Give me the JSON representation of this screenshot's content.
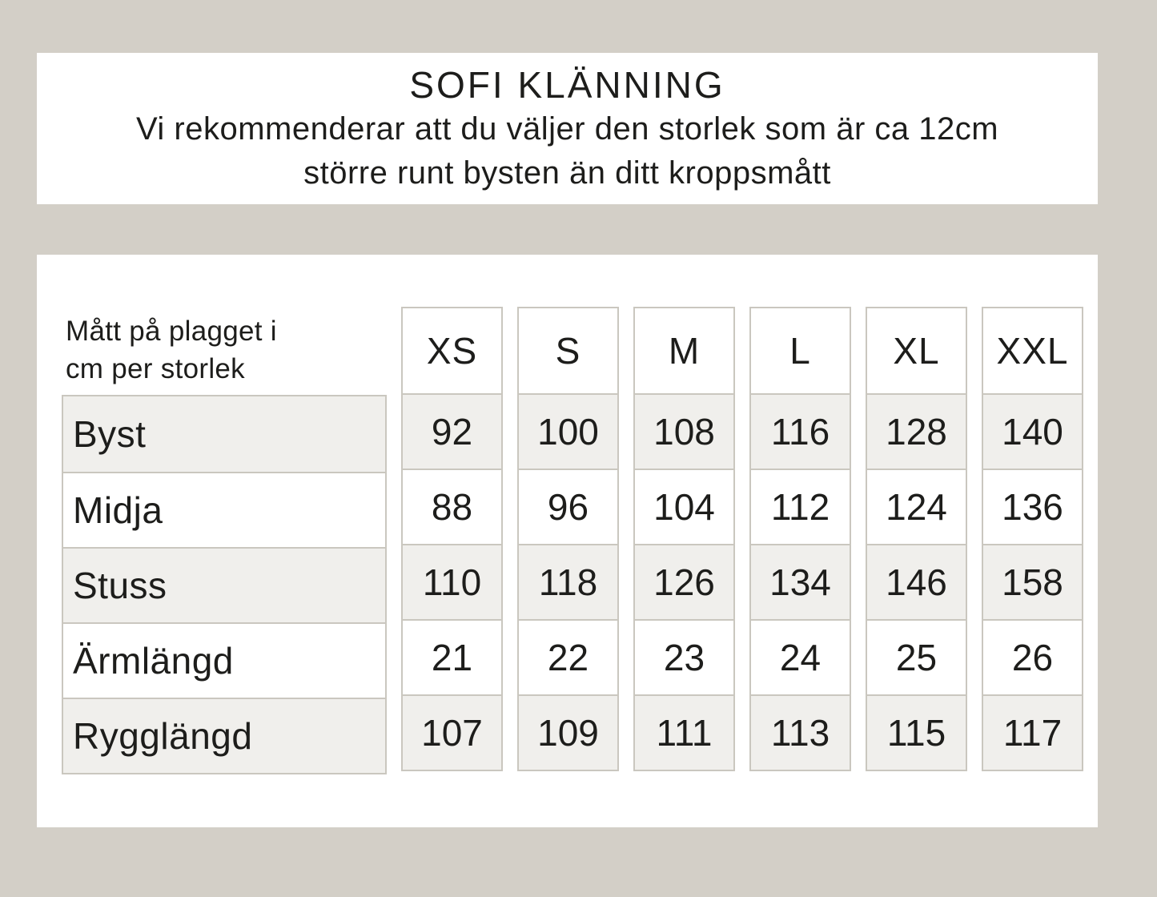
{
  "colors": {
    "background": "#d3cfc7",
    "panel": "#ffffff",
    "row_alt_bg": "#f0efec",
    "cell_border": "#cac7bf",
    "text": "#1d1d1b"
  },
  "header": {
    "title": "SOFI KLÄNNING",
    "subtitle_line1": "Vi rekommenderar att du väljer den storlek som är ca 12cm",
    "subtitle_line2": "större runt bysten än ditt kroppsmått"
  },
  "chart_data": {
    "type": "table",
    "title": "SOFI KLÄNNING",
    "corner_label_line1": "Mått på plagget i",
    "corner_label_line2": "cm per storlek",
    "columns": [
      "XS",
      "S",
      "M",
      "L",
      "XL",
      "XXL"
    ],
    "rows": [
      {
        "label": "Byst",
        "values": [
          92,
          100,
          108,
          116,
          128,
          140
        ]
      },
      {
        "label": "Midja",
        "values": [
          88,
          96,
          104,
          112,
          124,
          136
        ]
      },
      {
        "label": "Stuss",
        "values": [
          110,
          118,
          126,
          134,
          146,
          158
        ]
      },
      {
        "label": "Ärmlängd",
        "values": [
          21,
          22,
          23,
          24,
          25,
          26
        ]
      },
      {
        "label": "Rygglängd",
        "values": [
          107,
          109,
          111,
          113,
          115,
          117
        ]
      }
    ]
  }
}
